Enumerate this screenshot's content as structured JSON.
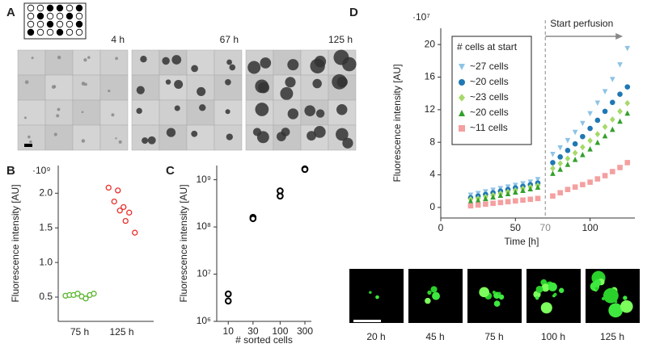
{
  "panel_a": {
    "label": "A",
    "time_labels": [
      "4 h",
      "67 h",
      "125 h"
    ]
  },
  "chart_data": [
    {
      "type": "strip",
      "panel_label": "B",
      "y_label": "Fluorescence intensity [AU]",
      "y_multiplier": "·10⁹",
      "categories": [
        "75 h",
        "125 h"
      ],
      "groups": [
        {
          "color": "#5ab52e",
          "values": [
            0.52,
            0.53,
            0.53,
            0.55,
            0.51,
            0.48,
            0.53,
            0.55
          ]
        },
        {
          "color": "#e8302a",
          "values": [
            2.08,
            2.04,
            1.88,
            1.8,
            1.75,
            1.72,
            1.6,
            1.43
          ]
        }
      ],
      "marker": "open-circle",
      "ylim": [
        0.15,
        2.4
      ],
      "yticks": [
        0.5,
        {
          "value": 1,
          "label": "1.0"
        },
        1.5,
        {
          "value": 2,
          "label": "2.0"
        }
      ]
    },
    {
      "type": "scatter",
      "panel_label": "C",
      "y_label": "Fluorescence intensity [AU]",
      "x_label": "# sorted cells",
      "x": [
        10,
        10,
        30,
        30,
        100,
        100,
        300,
        300
      ],
      "values": [
        3800000,
        2700000,
        160000000,
        150000000,
        580000000,
        450000000,
        1700000000,
        1650000000
      ],
      "color": "#000000",
      "marker": "open-circle",
      "xlog": true,
      "ylog": true,
      "xlim": [
        6,
        400
      ],
      "ylim": [
        1000000,
        2000000000
      ],
      "xticks": [
        10,
        30,
        100,
        300
      ],
      "yticks": [
        {
          "value": 1000000,
          "label": "10⁶"
        },
        {
          "value": 10000000,
          "label": "10⁷"
        },
        {
          "value": 100000000,
          "label": "10⁸"
        },
        {
          "value": 1000000000,
          "label": "10⁹"
        }
      ]
    },
    {
      "type": "scatter",
      "panel_label": "D",
      "y_label": "Fluorescence intensity [AU]",
      "x_label": "Time [h]",
      "y_multiplier": "·10⁷",
      "legend_title": "# cells at start",
      "perfusion": {
        "x": 70,
        "label": "Start perfusion"
      },
      "x": [
        20,
        25,
        30,
        35,
        40,
        45,
        50,
        55,
        60,
        65,
        75,
        80,
        85,
        90,
        95,
        100,
        105,
        110,
        115,
        120,
        125
      ],
      "series": [
        {
          "name": "~27 cells",
          "color": "#8ec3e6",
          "marker": "triangle-down",
          "values": [
            1.5,
            1.7,
            1.9,
            2.1,
            2.3,
            2.5,
            2.7,
            2.9,
            3.1,
            3.4,
            6.5,
            7.3,
            8.2,
            9.2,
            10.3,
            11.5,
            12.8,
            14.2,
            15.7,
            17.5,
            19.5
          ]
        },
        {
          "name": "~20 cells",
          "color": "#1f78b4",
          "marker": "circle",
          "values": [
            1.2,
            1.4,
            1.6,
            1.8,
            2.0,
            2.2,
            2.4,
            2.6,
            2.8,
            3.0,
            5.5,
            6.2,
            7.0,
            7.8,
            8.7,
            9.7,
            10.7,
            11.8,
            12.9,
            13.9,
            14.8
          ]
        },
        {
          "name": "~23 cells",
          "color": "#a6d96a",
          "marker": "diamond",
          "values": [
            1.0,
            1.1,
            1.3,
            1.5,
            1.7,
            1.9,
            2.1,
            2.3,
            2.5,
            2.7,
            4.8,
            5.4,
            6.0,
            6.7,
            7.4,
            8.2,
            9.0,
            9.9,
            10.8,
            11.8,
            12.8
          ]
        },
        {
          "name": "~20 cells",
          "color": "#33a02c",
          "marker": "triangle-up",
          "values": [
            0.8,
            0.9,
            1.1,
            1.3,
            1.5,
            1.7,
            1.9,
            2.1,
            2.3,
            2.5,
            4.2,
            4.7,
            5.3,
            5.9,
            6.5,
            7.2,
            8.0,
            8.8,
            9.6,
            10.6,
            11.6
          ]
        },
        {
          "name": "~11 cells",
          "color": "#f4a0a0",
          "marker": "square",
          "values": [
            0.2,
            0.3,
            0.4,
            0.5,
            0.6,
            0.7,
            0.8,
            0.9,
            1.0,
            1.1,
            1.4,
            1.8,
            2.2,
            2.5,
            2.8,
            3.1,
            3.5,
            3.9,
            4.4,
            4.9,
            5.5
          ]
        }
      ],
      "xlim": [
        0,
        130
      ],
      "ylim": [
        -1.3,
        22
      ],
      "xticks": [
        0,
        50,
        100
      ],
      "yticks": [
        0,
        4,
        8,
        12,
        16,
        20
      ],
      "image_labels": [
        "20 h",
        "45 h",
        "75 h",
        "100 h",
        "125 h"
      ]
    }
  ]
}
